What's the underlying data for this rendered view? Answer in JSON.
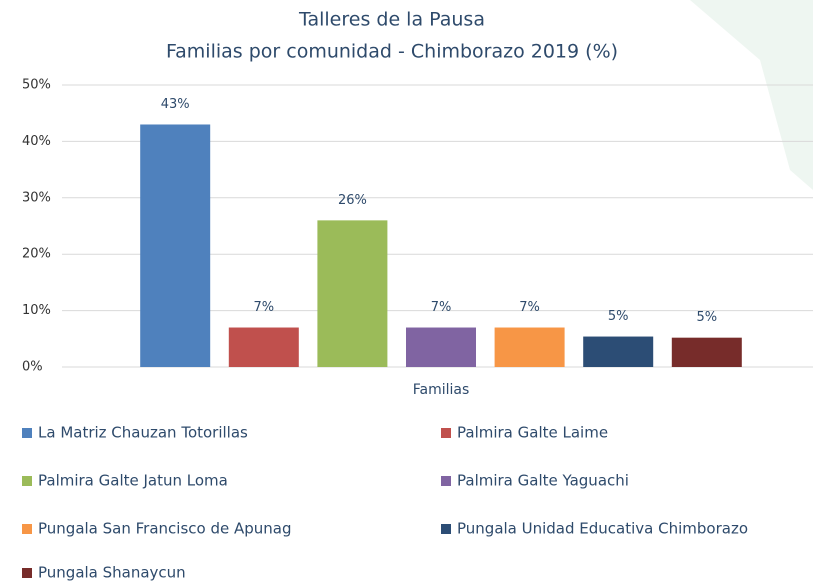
{
  "chart_data": {
    "type": "bar",
    "title": "Talleres de la Pausa",
    "subtitle": "Familias por comunidad - Chimborazo 2019 (%)",
    "categories": [
      "Familias"
    ],
    "series": [
      {
        "name": "La Matriz Chauzan Totorillas",
        "color": "#4f81bd",
        "values": [
          43
        ],
        "value_labels": [
          "43%"
        ]
      },
      {
        "name": "Palmira Galte Laime",
        "color": "#c0504d",
        "values": [
          7
        ],
        "value_labels": [
          "7%"
        ]
      },
      {
        "name": "Palmira Galte Jatun Loma",
        "color": "#9bbb59",
        "values": [
          26
        ],
        "value_labels": [
          "26%"
        ]
      },
      {
        "name": "Palmira Galte Yaguachi",
        "color": "#8064a2",
        "values": [
          7
        ],
        "value_labels": [
          "7%"
        ]
      },
      {
        "name": "Pungala San Francisco de Apunag",
        "color": "#f79646",
        "values": [
          7
        ],
        "value_labels": [
          "7%"
        ]
      },
      {
        "name": "Pungala Unidad Educativa Chimborazo",
        "color": "#2c4d75",
        "values": [
          5.4
        ],
        "value_labels": [
          "5%"
        ]
      },
      {
        "name": "Pungala Shanaycun",
        "color": "#772c2a",
        "values": [
          5.2
        ],
        "value_labels": [
          "5%"
        ]
      }
    ],
    "ylim": [
      0,
      50
    ],
    "yticks": [
      {
        "value": 0,
        "label": "0%"
      },
      {
        "value": 10,
        "label": "10%"
      },
      {
        "value": 20,
        "label": "20%"
      },
      {
        "value": 30,
        "label": "30%"
      },
      {
        "value": 40,
        "label": "40%"
      },
      {
        "value": 50,
        "label": "50%"
      }
    ],
    "grid": true,
    "legend": "bottom"
  }
}
